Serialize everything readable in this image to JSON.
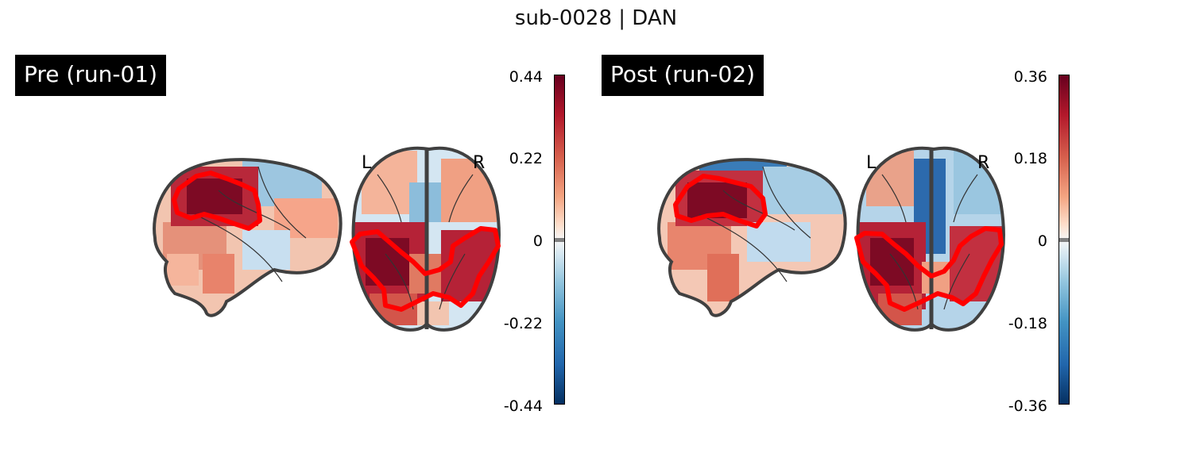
{
  "figure": {
    "title": "sub-0028 | DAN"
  },
  "panels": [
    {
      "label": "Pre (run-01)",
      "orientation": {
        "left": "L",
        "right": "R"
      },
      "colorbar": {
        "ticks": [
          "0.44",
          "0.22",
          "0",
          "-0.22",
          "-0.44"
        ],
        "colormap": "RdBu_r"
      }
    },
    {
      "label": "Post (run-02)",
      "orientation": {
        "left": "L",
        "right": "R"
      },
      "colorbar": {
        "ticks": [
          "0.36",
          "0.18",
          "0",
          "-0.18",
          "-0.36"
        ],
        "colormap": "RdBu_r"
      }
    }
  ],
  "colors": {
    "roi_outline": "#ff0000",
    "brain_outline": "#404040"
  }
}
